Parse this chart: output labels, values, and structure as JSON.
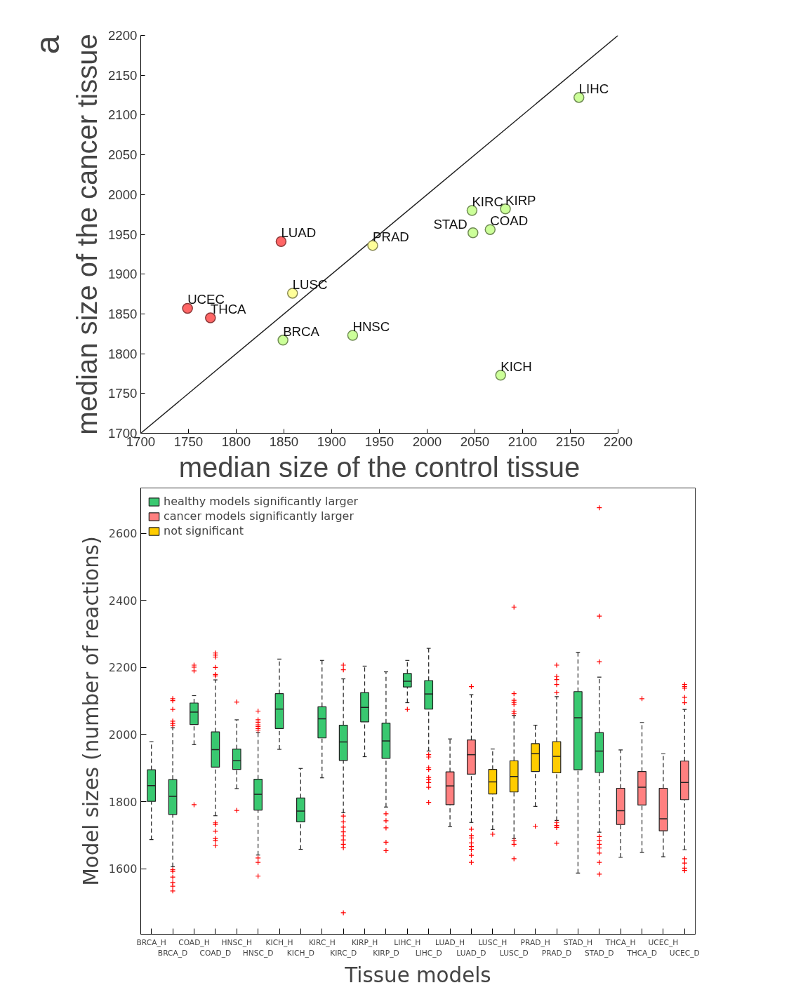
{
  "chart_data": [
    {
      "type": "scatter",
      "xlabel": "median size of the control tissue",
      "ylabel": "median size of the cancer tissue",
      "xlim": [
        1700,
        2200
      ],
      "ylim": [
        1700,
        2200
      ],
      "xticks": [
        1700,
        1750,
        1800,
        1850,
        1900,
        1950,
        2000,
        2050,
        2100,
        2150,
        2200
      ],
      "yticks": [
        1700,
        1750,
        1800,
        1850,
        1900,
        1950,
        2000,
        2050,
        2100,
        2150,
        2200
      ],
      "grid": false,
      "legend": false,
      "marker": "circle",
      "annotations": [
        "a",
        {
          "text": "LIHC",
          "x": 2159,
          "y": 2122
        },
        {
          "text": "KIRC",
          "x": 2047,
          "y": 1980
        },
        {
          "text": "KIRP",
          "x": 2082,
          "y": 1982
        },
        {
          "text": "STAD",
          "x": 2048,
          "y": 1952
        },
        {
          "text": "COAD",
          "x": 2066,
          "y": 1956
        },
        {
          "text": "LUAD",
          "x": 1847,
          "y": 1941
        },
        {
          "text": "PRAD",
          "x": 1943,
          "y": 1936
        },
        {
          "text": "LUSC",
          "x": 1859,
          "y": 1876
        },
        {
          "text": "UCEC",
          "x": 1749,
          "y": 1857
        },
        {
          "text": "THCA",
          "x": 1773,
          "y": 1845
        },
        {
          "text": "BRCA",
          "x": 1849,
          "y": 1817
        },
        {
          "text": "HNSC",
          "x": 1922,
          "y": 1823
        },
        {
          "text": "KICH",
          "x": 2077,
          "y": 1773
        }
      ],
      "series": [
        {
          "type": "line",
          "x": [
            1700,
            2200
          ],
          "values": [
            1700,
            2200
          ],
          "color": "#222222",
          "marker": "none"
        },
        {
          "x": [
            2159,
            2047,
            2082,
            2048,
            2066,
            1849,
            1922,
            2077
          ],
          "values": [
            2122,
            1980,
            1982,
            1952,
            1956,
            1817,
            1823,
            1773
          ],
          "color": "#ccff99"
        },
        {
          "x": [
            1847,
            1749,
            1773
          ],
          "values": [
            1941,
            1857,
            1845
          ],
          "color": "#ff6666"
        },
        {
          "x": [
            1943,
            1859
          ],
          "values": [
            1936,
            1876
          ],
          "color": "#ffff99"
        }
      ]
    },
    {
      "type": "box",
      "xlabel": "Tissue models",
      "ylabel": "Model sizes (number of reactions)",
      "ylim": [
        1405,
        2735
      ],
      "yticks": [
        1600,
        1800,
        2000,
        2200,
        2400,
        2600
      ],
      "grid": false,
      "legend": "top left",
      "marker": "cross",
      "categories": [
        "BRCA_H",
        "BRCA_D",
        "COAD_H",
        "COAD_D",
        "HNSC_H",
        "HNSC_D",
        "KICH_H",
        "KICH_D",
        "KIRC_H",
        "KIRC_D",
        "KIRP_H",
        "KIRP_D",
        "LIHC_H",
        "LIHC_D",
        "LUAD_H",
        "LUAD_D",
        "LUSC_H",
        "LUSC_D",
        "PRAD_H",
        "PRAD_D",
        "STAD_H",
        "STAD_D",
        "THCA_H",
        "THCA_D",
        "UCEC_H",
        "UCEC_D"
      ],
      "series": [
        {
          "name": "healthy models significantly larger",
          "color": "#39c870",
          "boxes": [
            {
              "low": 1687,
              "q1": 1801,
              "median": 1848,
              "q3": 1895,
              "high": 1979
            },
            {
              "low": 1606,
              "q1": 1762,
              "median": 1816,
              "q3": 1866,
              "high": 2020,
              "outliers": [
                2107,
                2101,
                2075,
                2040,
                2033,
                2028,
                1597,
                1592,
                1575,
                1559,
                1548,
                1534
              ]
            },
            {
              "low": 1970,
              "q1": 2030,
              "median": 2067,
              "q3": 2094,
              "high": 2116,
              "outliers": [
                2207,
                2201,
                2190,
                1791
              ]
            },
            {
              "low": 1758,
              "q1": 1903,
              "median": 1955,
              "q3": 2008,
              "high": 2163,
              "outliers": [
                2243,
                2237,
                2231,
                2200,
                2179,
                2175,
                1737,
                1732,
                1712,
                1690,
                1684,
                1669
              ]
            },
            {
              "low": 1839,
              "q1": 1896,
              "median": 1922,
              "q3": 1957,
              "high": 2044,
              "outliers": [
                2097,
                1774
              ]
            },
            {
              "low": 1641,
              "q1": 1775,
              "median": 1822,
              "q3": 1867,
              "high": 2006,
              "outliers": [
                2070,
                2044,
                2037,
                2029,
                2024,
                2018,
                2013,
                1632,
                1619,
                1578
              ]
            },
            {
              "low": 1956,
              "q1": 2018,
              "median": 2076,
              "q3": 2122,
              "high": 2225
            },
            {
              "low": 1658,
              "q1": 1740,
              "median": 1772,
              "q3": 1811,
              "high": 1899
            },
            {
              "low": 1871,
              "q1": 1990,
              "median": 2047,
              "q3": 2083,
              "high": 2221
            },
            {
              "low": 1767,
              "q1": 1923,
              "median": 1978,
              "q3": 2028,
              "high": 2166,
              "outliers": [
                2207,
                2193,
                1757,
                1740,
                1724,
                1710,
                1698,
                1686,
                1673,
                1663,
                1469
              ]
            },
            {
              "low": 1934,
              "q1": 2038,
              "median": 2081,
              "q3": 2125,
              "high": 2204
            },
            {
              "low": 1784,
              "q1": 1929,
              "median": 1981,
              "q3": 2034,
              "high": 2187,
              "outliers": [
                1764,
                1743,
                1722,
                1679,
                1654
              ]
            },
            {
              "low": 2095,
              "q1": 2142,
              "median": 2159,
              "q3": 2182,
              "high": 2221,
              "outliers": [
                2075
              ]
            },
            {
              "low": 1951,
              "q1": 2076,
              "median": 2121,
              "q3": 2161,
              "high": 2257,
              "outliers": [
                1940,
                1933,
                1901,
                1896,
                1872,
                1866,
                1857,
                1843,
                1798
              ]
            },
            null,
            null,
            null,
            null,
            null,
            null,
            {
              "low": 1587,
              "q1": 1895,
              "median": 2050,
              "q3": 2128,
              "high": 2245
            },
            {
              "low": 1709,
              "q1": 1887,
              "median": 1951,
              "q3": 2006,
              "high": 2171,
              "outliers": [
                2676,
                2353,
                2217,
                1696,
                1684,
                1673,
                1662,
                1647,
                1619,
                1584
              ]
            },
            null,
            null,
            null,
            null
          ]
        },
        {
          "name": "cancer models significantly larger",
          "color": "#ff8080",
          "boxes": [
            null,
            null,
            null,
            null,
            null,
            null,
            null,
            null,
            null,
            null,
            null,
            null,
            null,
            null,
            {
              "low": 1726,
              "q1": 1791,
              "median": 1847,
              "q3": 1889,
              "high": 1987
            },
            {
              "low": 1738,
              "q1": 1882,
              "median": 1940,
              "q3": 1984,
              "high": 2119,
              "outliers": [
                2143,
                1718,
                1699,
                1692,
                1677,
                1666,
                1658,
                1640,
                1619
              ]
            },
            null,
            null,
            null,
            null,
            null,
            null,
            {
              "low": 1634,
              "q1": 1732,
              "median": 1773,
              "q3": 1840,
              "high": 1954
            },
            {
              "low": 1649,
              "q1": 1790,
              "median": 1843,
              "q3": 1890,
              "high": 2036,
              "outliers": [
                2107
              ]
            },
            {
              "low": 1636,
              "q1": 1713,
              "median": 1749,
              "q3": 1840,
              "high": 1943
            },
            {
              "low": 1657,
              "q1": 1806,
              "median": 1857,
              "q3": 1921,
              "high": 2075,
              "outliers": [
                2149,
                2143,
                2138,
                2111,
                2095,
                1630,
                1617,
                1602,
                1595
              ]
            }
          ]
        },
        {
          "name": "not significant",
          "color": "#ffcc00",
          "boxes": [
            null,
            null,
            null,
            null,
            null,
            null,
            null,
            null,
            null,
            null,
            null,
            null,
            null,
            null,
            null,
            null,
            {
              "low": 1717,
              "q1": 1823,
              "median": 1859,
              "q3": 1896,
              "high": 1957,
              "outliers": [
                1703
              ]
            },
            {
              "low": 1690,
              "q1": 1829,
              "median": 1875,
              "q3": 1922,
              "high": 2057,
              "outliers": [
                2380,
                2122,
                2102,
                2096,
                2090,
                2069,
                2063,
                1684,
                1673,
                1630
              ]
            },
            {
              "low": 1786,
              "q1": 1890,
              "median": 1943,
              "q3": 1973,
              "high": 2028,
              "outliers": [
                1727
              ]
            },
            {
              "low": 1744,
              "q1": 1886,
              "median": 1935,
              "q3": 1979,
              "high": 2113,
              "outliers": [
                2207,
                2173,
                2164,
                2149,
                2125,
                1738,
                1729,
                1723,
                1676
              ]
            },
            null,
            null,
            null,
            null,
            null,
            null
          ]
        }
      ]
    }
  ]
}
